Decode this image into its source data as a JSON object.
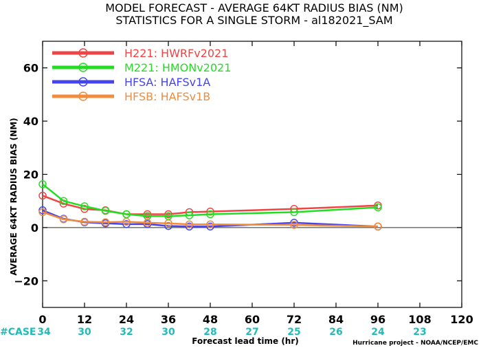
{
  "chart_data": {
    "type": "line",
    "title": [
      "MODEL FORECAST - AVERAGE 64KT RADIUS BIAS (NM)",
      "STATISTICS FOR A SINGLE STORM - al182021_SAM"
    ],
    "xlabel": "Forecast lead time (hr)",
    "ylabel": "AVERAGE 64KT RADIUS BIAS (NM)",
    "xlim": [
      0,
      120
    ],
    "ylim": [
      -30,
      70
    ],
    "x_ticks": [
      0,
      12,
      24,
      36,
      48,
      60,
      72,
      84,
      96,
      108,
      120
    ],
    "y_ticks": [
      -20,
      0,
      20,
      40,
      60
    ],
    "zero_line": 0,
    "cases_label": "#CASE",
    "cases": [
      {
        "x": 0,
        "n": "34"
      },
      {
        "x": 12,
        "n": "30"
      },
      {
        "x": 24,
        "n": "32"
      },
      {
        "x": 36,
        "n": "30"
      },
      {
        "x": 48,
        "n": "28"
      },
      {
        "x": 60,
        "n": "27"
      },
      {
        "x": 72,
        "n": "25"
      },
      {
        "x": 84,
        "n": "26"
      },
      {
        "x": 96,
        "n": "24"
      },
      {
        "x": 108,
        "n": "23"
      }
    ],
    "credit": "Hurricane project - NOAA/NCEP/EMC",
    "series": [
      {
        "name": "H221: HWRFv2021",
        "color": "#ee4444",
        "x": [
          0,
          6,
          12,
          18,
          24,
          30,
          36,
          42,
          48,
          72,
          96
        ],
        "y": [
          12.0,
          9.0,
          7.0,
          6.5,
          5.0,
          5.0,
          5.0,
          5.8,
          6.0,
          7.0,
          8.3
        ]
      },
      {
        "name": "M221: HMONv2021",
        "color": "#22dd22",
        "x": [
          0,
          6,
          12,
          18,
          24,
          30,
          36,
          42,
          48,
          72,
          96
        ],
        "y": [
          16.3,
          10.0,
          8.0,
          6.3,
          5.0,
          4.3,
          4.3,
          4.6,
          5.0,
          5.8,
          7.6
        ]
      },
      {
        "name": "HFSA: HAFSv1A",
        "color": "#4444ee",
        "x": [
          0,
          6,
          12,
          18,
          24,
          30,
          36,
          42,
          48,
          72,
          96
        ],
        "y": [
          6.5,
          3.3,
          2.0,
          1.6,
          1.3,
          1.3,
          0.6,
          0.4,
          0.4,
          1.8,
          0.4
        ]
      },
      {
        "name": "HFSB: HAFSv1B",
        "color": "#f08c3c",
        "x": [
          0,
          6,
          12,
          18,
          24,
          30,
          36,
          42,
          48,
          72,
          96
        ],
        "y": [
          5.8,
          3.1,
          2.2,
          2.0,
          2.2,
          1.8,
          1.6,
          1.2,
          1.2,
          1.0,
          0.4
        ]
      }
    ],
    "legend_position": "top-left",
    "case_color": "#22bbbb"
  }
}
